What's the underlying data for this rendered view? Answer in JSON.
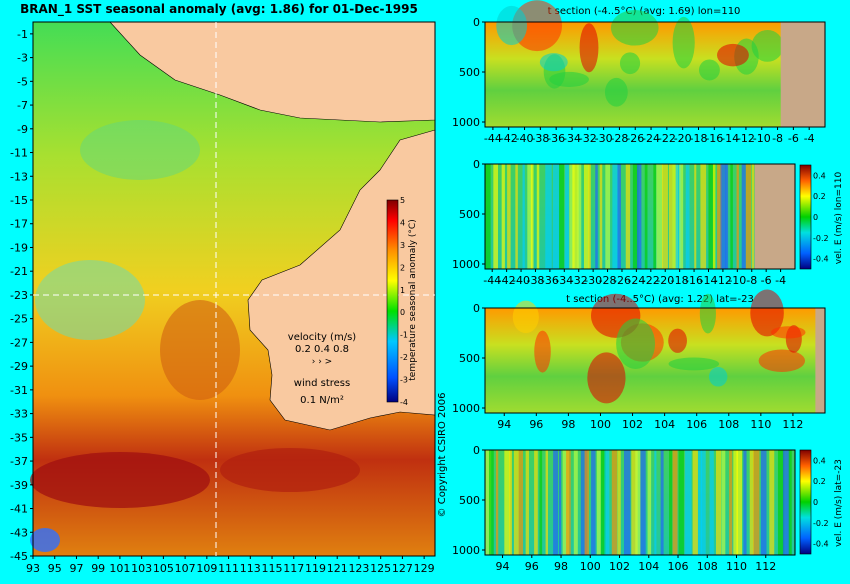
{
  "chart_data": [
    {
      "type": "heatmap",
      "title": "BRAN_1  SST seasonal anomaly  (avg: 1.86) for 01-Dec-1995",
      "x_ticks": [
        "93",
        "95",
        "97",
        "99",
        "101",
        "103",
        "105",
        "107",
        "109",
        "111",
        "113",
        "115",
        "117",
        "119",
        "121",
        "123",
        "125",
        "127",
        "129"
      ],
      "y_ticks": [
        "-1",
        "-3",
        "-5",
        "-7",
        "-9",
        "-11",
        "-13",
        "-15",
        "-17",
        "-19",
        "-21",
        "-23",
        "-25",
        "-27",
        "-29",
        "-31",
        "-33",
        "-35",
        "-37",
        "-39",
        "-41",
        "-43",
        "-45"
      ],
      "xlim": [
        93,
        130
      ],
      "ylim": [
        -45,
        0
      ],
      "section_lines": {
        "lon": 110,
        "lat": -23
      },
      "colorbar": {
        "label": "temperature seasonal anomaly (°C)",
        "ticks": [
          "5",
          "4",
          "3",
          "2",
          "1",
          "0",
          "-1",
          "-2",
          "-3",
          "-4"
        ],
        "range": [
          -4,
          5
        ]
      },
      "velocity_legend": {
        "title": "velocity (m/s)",
        "values": "0.2 0.4 0.8"
      },
      "wind_legend": {
        "title": "wind stress",
        "value": "0.1 N/m²"
      },
      "copyright": "© Copyright CSIRO 2006"
    },
    {
      "type": "heatmap",
      "title": "t section (-4..5°C) (avg: 1.69) lon=110",
      "x_ticks": [
        "-44",
        "-42",
        "-40",
        "-38",
        "-36",
        "-34",
        "-32",
        "-30",
        "-28",
        "-26",
        "-24",
        "-22",
        "-20",
        "-18",
        "-16",
        "-14",
        "-12",
        "-10",
        "-8",
        "-6",
        "-4"
      ],
      "y_ticks": [
        "0",
        "500",
        "1000"
      ],
      "xlim": [
        -45,
        -2
      ],
      "ylim": [
        1050,
        0
      ]
    },
    {
      "type": "heatmap",
      "title": "",
      "x_ticks": [
        "-44",
        "-42",
        "-40",
        "-38",
        "-36",
        "-34",
        "-32",
        "-30",
        "-28",
        "-26",
        "-24",
        "-22",
        "-20",
        "-18",
        "-16",
        "-14",
        "-12",
        "-10",
        "-8",
        "-6",
        "-4"
      ],
      "y_ticks": [
        "0",
        "500",
        "1000"
      ],
      "xlim": [
        -45,
        -2
      ],
      "ylim": [
        1050,
        0
      ],
      "colorbar": {
        "label": "vel. E (m/s) lon=110",
        "ticks": [
          "0.4",
          "0.2",
          "0",
          "-0.2",
          "-0.4"
        ],
        "range": [
          -0.5,
          0.5
        ]
      }
    },
    {
      "type": "heatmap",
      "title": "t section (-4..5°C) (avg: 1.22) lat=-23",
      "x_ticks": [
        "94",
        "96",
        "98",
        "100",
        "102",
        "104",
        "106",
        "108",
        "110",
        "112"
      ],
      "y_ticks": [
        "0",
        "500",
        "1000"
      ],
      "xlim": [
        92.8,
        114
      ],
      "ylim": [
        1050,
        0
      ]
    },
    {
      "type": "heatmap",
      "title": "",
      "x_ticks": [
        "94",
        "96",
        "98",
        "100",
        "102",
        "104",
        "106",
        "108",
        "110",
        "112"
      ],
      "y_ticks": [
        "0",
        "500",
        "1000"
      ],
      "xlim": [
        92.8,
        114
      ],
      "ylim": [
        1050,
        0
      ],
      "colorbar": {
        "label": "vel. E (m/s) lat=-23",
        "ticks": [
          "0.4",
          "0.2",
          "0",
          "-0.2",
          "-0.4"
        ],
        "range": [
          -0.5,
          0.5
        ]
      }
    }
  ]
}
